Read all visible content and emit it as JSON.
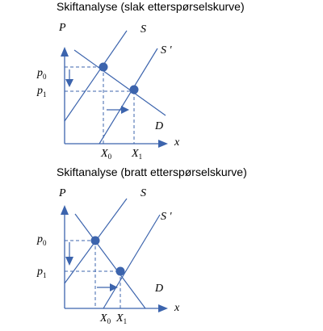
{
  "diagrams": [
    {
      "title": "Skiftanalyse (slak etterspørselskurve)",
      "y_axis_label": "P",
      "x_axis_label": "x",
      "supply_label": "S",
      "shifted_supply_label": "S '",
      "demand_label": "D",
      "price_labels": [
        {
          "main": "p",
          "sub": "0"
        },
        {
          "main": "p",
          "sub": "1"
        }
      ],
      "quantity_labels": [
        {
          "main": "X",
          "sub": "0"
        },
        {
          "main": "X",
          "sub": "1"
        }
      ]
    },
    {
      "title": "Skiftanalyse (bratt etterspørselskurve)",
      "y_axis_label": "P",
      "x_axis_label": "x",
      "supply_label": "S",
      "shifted_supply_label": "S '",
      "demand_label": "D",
      "price_labels": [
        {
          "main": "p",
          "sub": "0"
        },
        {
          "main": "p",
          "sub": "1"
        }
      ],
      "quantity_labels": [
        {
          "main": "X",
          "sub": "0"
        },
        {
          "main": "X",
          "sub": "1"
        }
      ]
    }
  ]
}
